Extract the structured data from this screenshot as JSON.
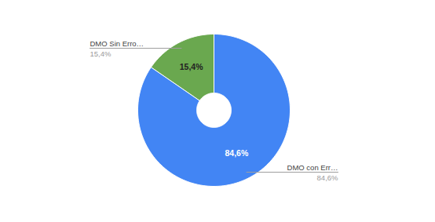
{
  "chart_data": {
    "type": "pie",
    "categories": [
      "DMO con Err…",
      "DMO Sin Erro…"
    ],
    "values": [
      84.6,
      15.4
    ],
    "value_labels": [
      "84,6%",
      "15,4%"
    ],
    "colors": [
      "#4285f4",
      "#6aa84f"
    ],
    "data_labels": true
  }
}
